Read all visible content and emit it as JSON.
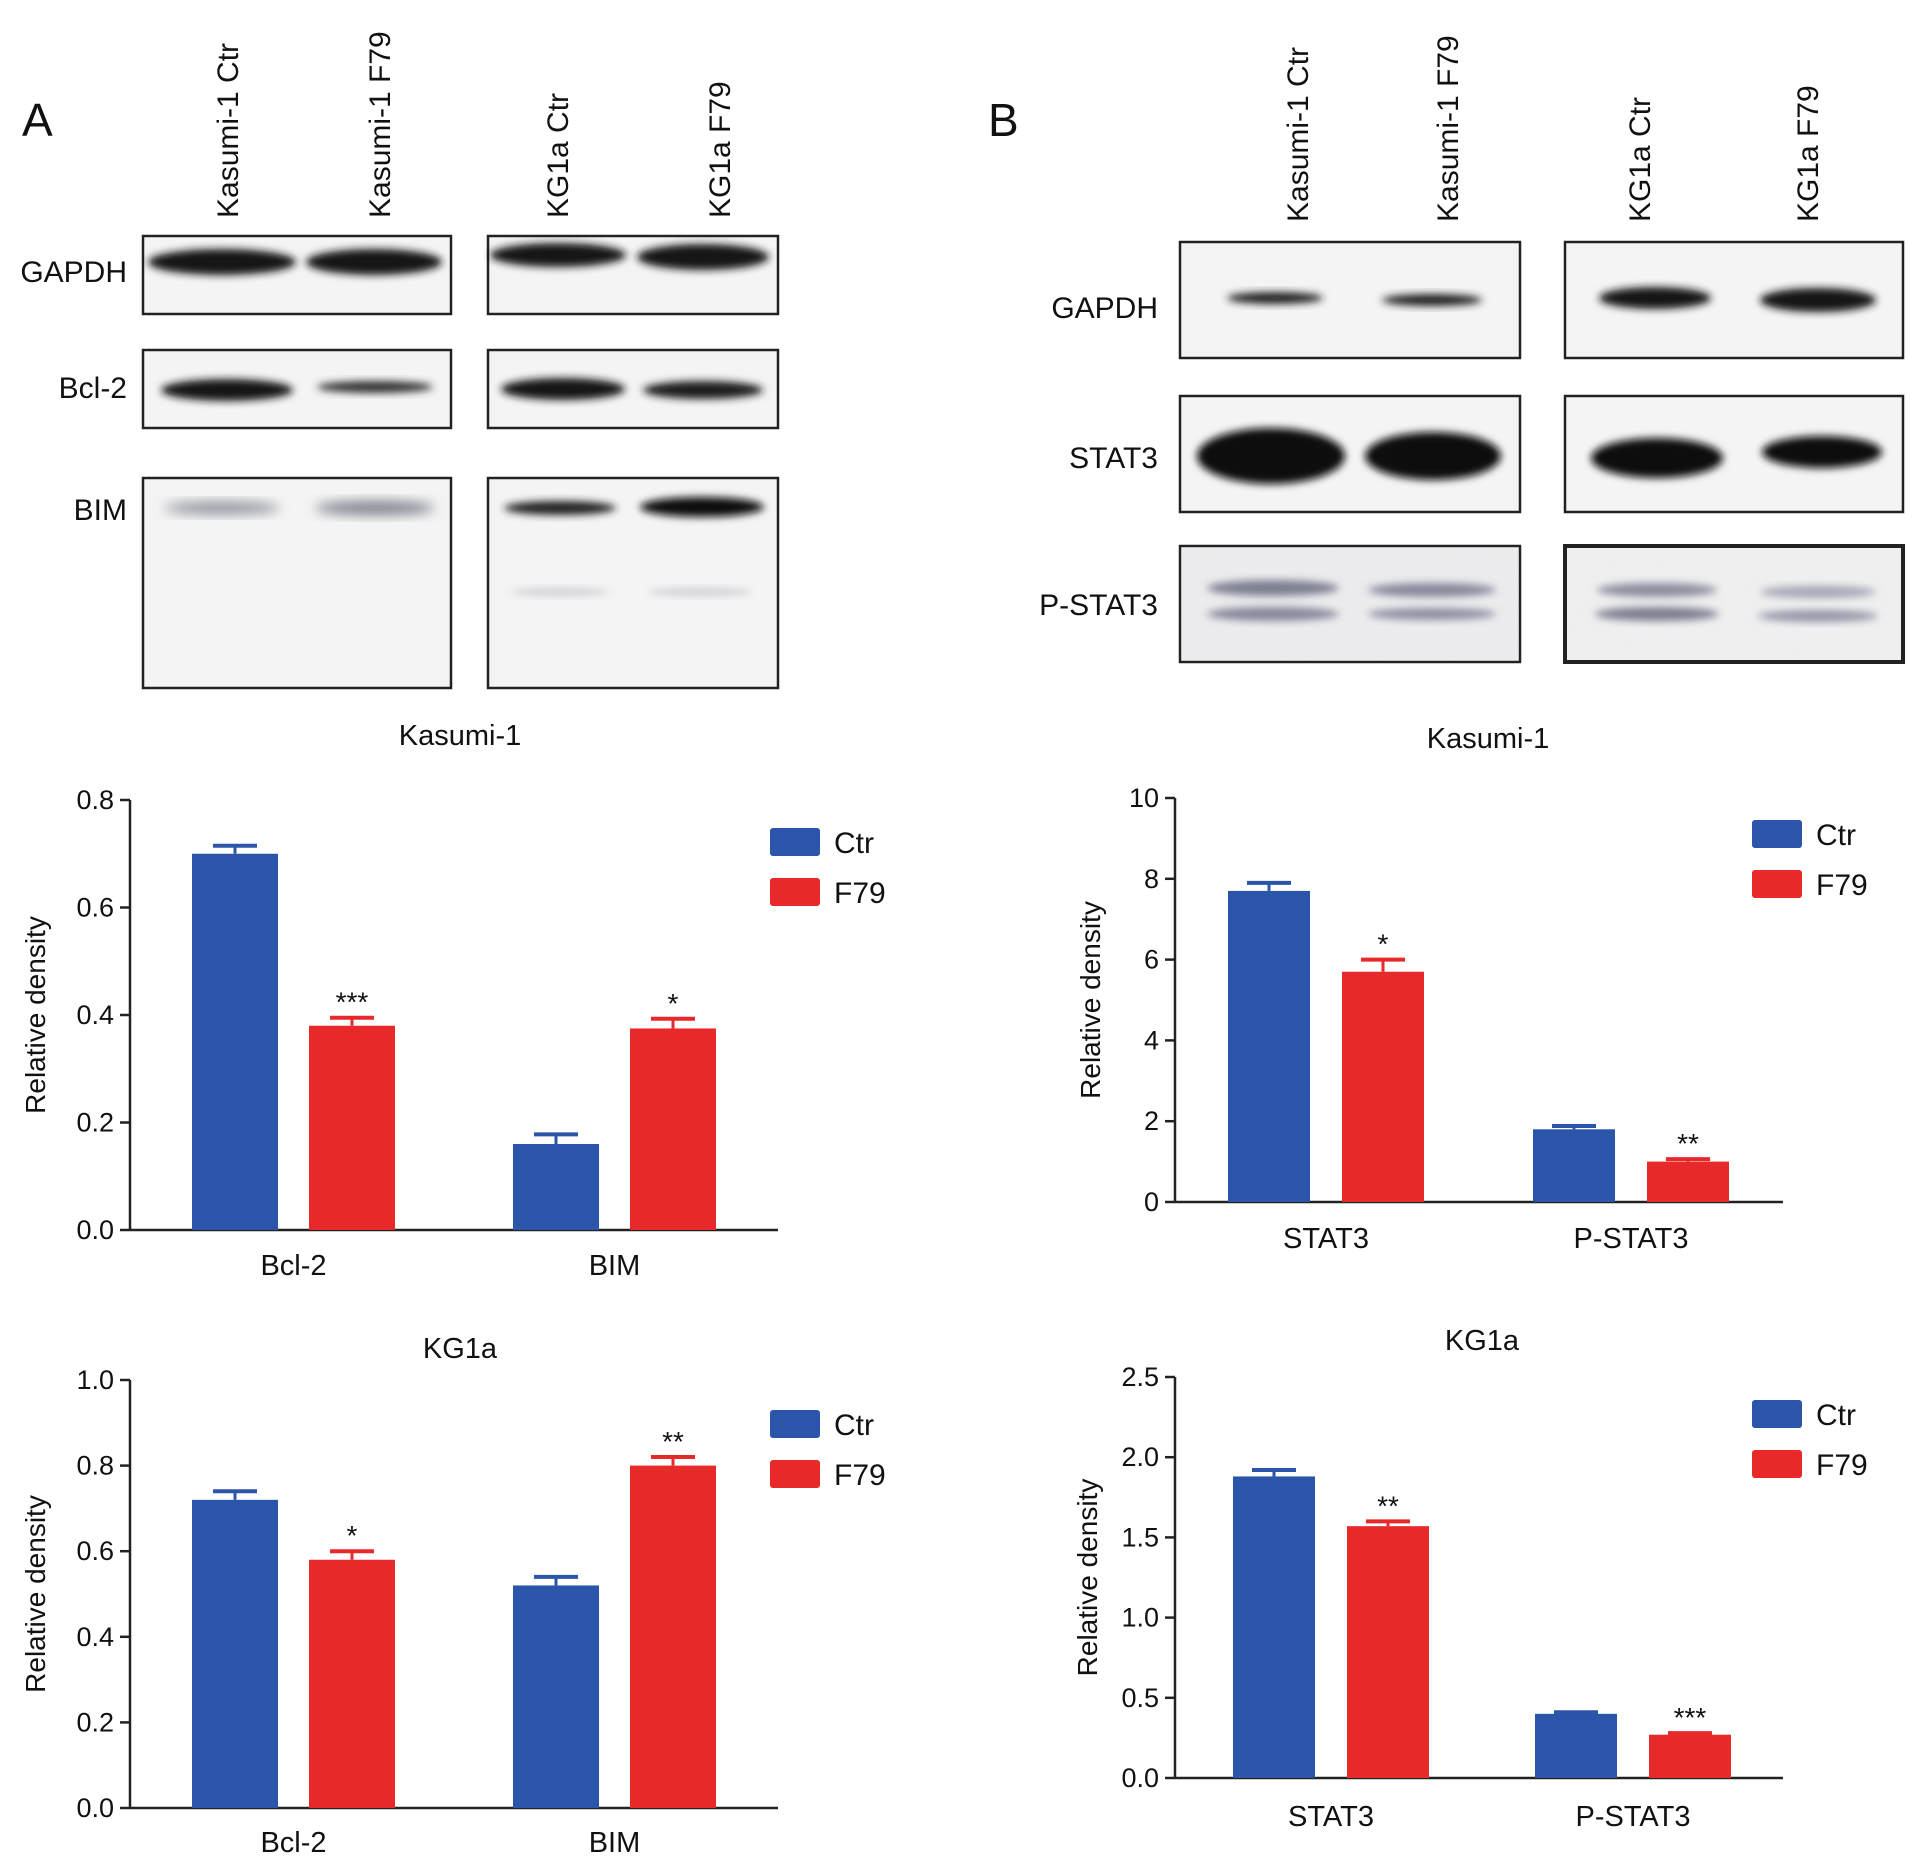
{
  "panels": {
    "A": {
      "letter": "A",
      "lanes": [
        "Kasumi-1 Ctr",
        "Kasumi-1 F79",
        "KG1a Ctr",
        "KG1a F79"
      ],
      "rows": [
        "GAPDH",
        "Bcl-2",
        "BIM"
      ]
    },
    "B": {
      "letter": "B",
      "lanes": [
        "Kasumi-1 Ctr",
        "Kasumi-1 F79",
        "KG1a Ctr",
        "KG1a F79"
      ],
      "rows": [
        "GAPDH",
        "STAT3",
        "P-STAT3"
      ]
    }
  },
  "colors": {
    "ctr": "#2a55a8",
    "f79": "#e8292a"
  },
  "chart_data": [
    {
      "id": "A-Kasumi-1",
      "type": "bar",
      "title": "Kasumi-1",
      "ylabel": "Relative density",
      "categories": [
        "Bcl-2",
        "BIM"
      ],
      "ylim": [
        0,
        0.8
      ],
      "yticks": [
        "0.0",
        "0.2",
        "0.4",
        "0.6",
        "0.8"
      ],
      "series": [
        {
          "name": "Ctr",
          "values": [
            0.7,
            0.16
          ],
          "errors": [
            0.015,
            0.018
          ],
          "stars": [
            "",
            ""
          ]
        },
        {
          "name": "F79",
          "values": [
            0.38,
            0.375
          ],
          "errors": [
            0.015,
            0.018
          ],
          "stars": [
            "***",
            "*"
          ]
        }
      ],
      "legend": "top-right"
    },
    {
      "id": "A-KG1a",
      "type": "bar",
      "title": "KG1a",
      "ylabel": "Relative density",
      "categories": [
        "Bcl-2",
        "BIM"
      ],
      "ylim": [
        0,
        1.0
      ],
      "yticks": [
        "0.0",
        "0.2",
        "0.4",
        "0.6",
        "0.8",
        "1.0"
      ],
      "series": [
        {
          "name": "Ctr",
          "values": [
            0.72,
            0.52
          ],
          "errors": [
            0.02,
            0.02
          ],
          "stars": [
            "",
            ""
          ]
        },
        {
          "name": "F79",
          "values": [
            0.58,
            0.8
          ],
          "errors": [
            0.02,
            0.02
          ],
          "stars": [
            "*",
            "**"
          ]
        }
      ],
      "legend": "top-right"
    },
    {
      "id": "B-Kasumi-1",
      "type": "bar",
      "title": "Kasumi-1",
      "ylabel": "Relative density",
      "categories": [
        "STAT3",
        "P-STAT3"
      ],
      "ylim": [
        0,
        10
      ],
      "yticks": [
        "0",
        "2",
        "4",
        "6",
        "8",
        "10"
      ],
      "series": [
        {
          "name": "Ctr",
          "values": [
            7.7,
            1.8
          ],
          "errors": [
            0.2,
            0.08
          ],
          "stars": [
            "",
            ""
          ]
        },
        {
          "name": "F79",
          "values": [
            5.7,
            1.0
          ],
          "errors": [
            0.3,
            0.06
          ],
          "stars": [
            "*",
            "**"
          ]
        }
      ],
      "legend": "top-right"
    },
    {
      "id": "B-KG1a",
      "type": "bar",
      "title": "KG1a",
      "ylabel": "Relative density",
      "categories": [
        "STAT3",
        "P-STAT3"
      ],
      "ylim": [
        0,
        2.5
      ],
      "yticks": [
        "0.0",
        "0.5",
        "1.0",
        "1.5",
        "2.0",
        "2.5"
      ],
      "series": [
        {
          "name": "Ctr",
          "values": [
            1.88,
            0.4
          ],
          "errors": [
            0.04,
            0.01
          ],
          "stars": [
            "",
            ""
          ]
        },
        {
          "name": "F79",
          "values": [
            1.57,
            0.27
          ],
          "errors": [
            0.03,
            0.01
          ],
          "stars": [
            "**",
            "***"
          ]
        }
      ],
      "legend": "top-right"
    }
  ]
}
